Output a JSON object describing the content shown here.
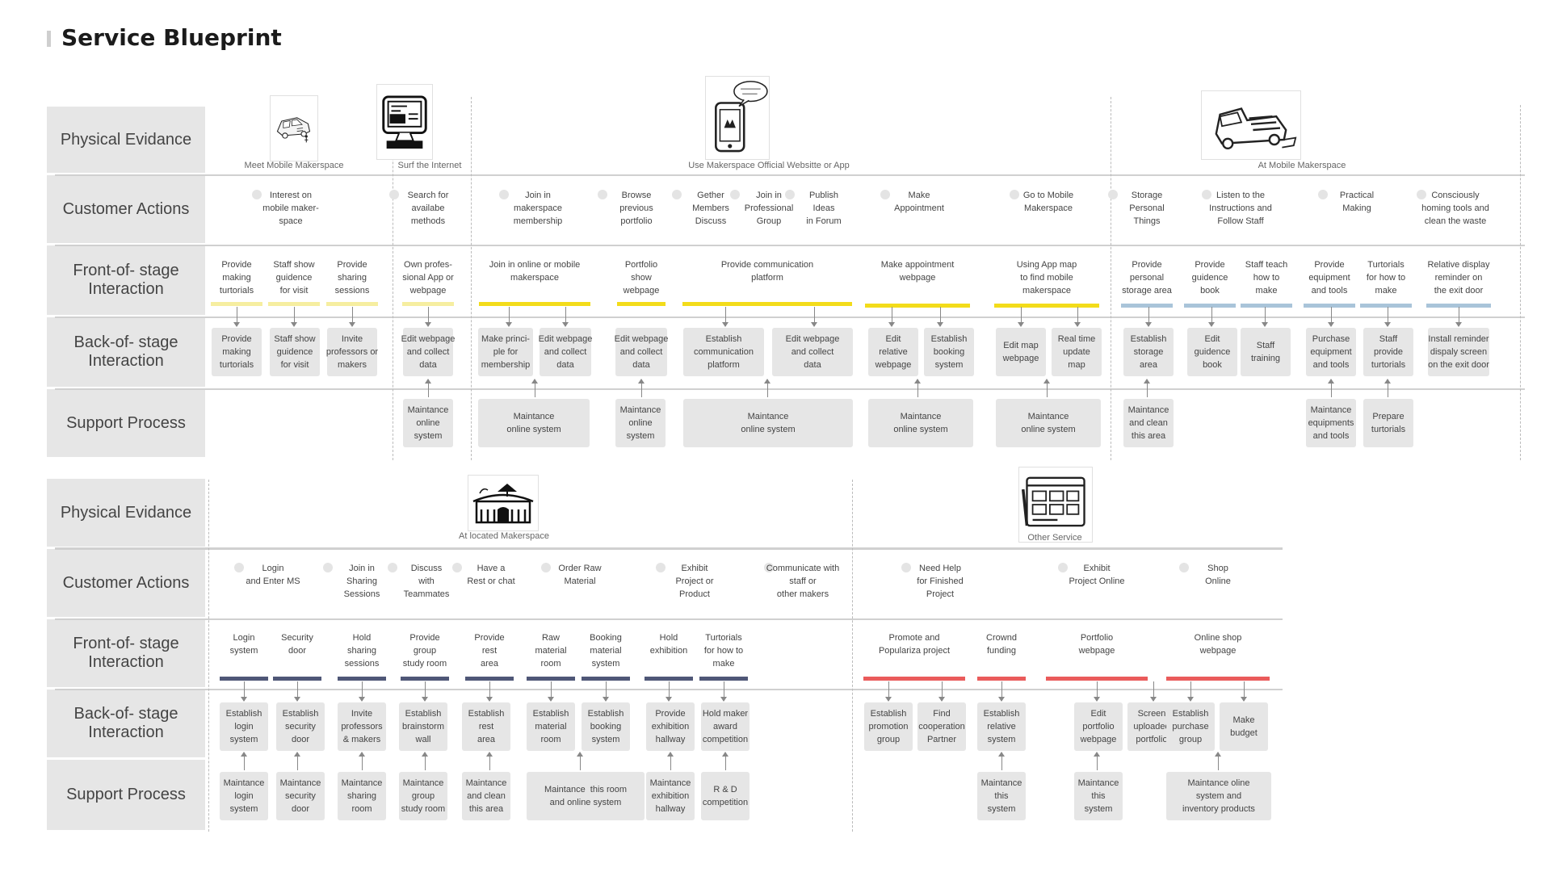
{
  "title": "Service Blueprint",
  "colors": {
    "yellow_light": "#f6eea0",
    "yellow": "#f3dc1a",
    "blue_light": "#a9c4d9",
    "navy": "#4f5777",
    "red": "#ea5b5b",
    "lane": "#e6e6e6"
  },
  "lane_labels": [
    "Physical\nEvidance",
    "Customer\nActions",
    "Front-of-\nstage\nInteraction",
    "Back-of-\nstage\nInteraction",
    "Support\nProcess"
  ],
  "lane_labels_bottom": [
    "Physical\nEvidance",
    "Customer\nActions",
    "Front-of-\nstage\nInteraction",
    "Back-of-\nstage\nInteraction",
    "Support\nProcess"
  ],
  "evidence_top": [
    {
      "icon": "mobile-van-sketch-icon",
      "caption": "Meet Mobile Makerspace"
    },
    {
      "icon": "computer-sketch-icon",
      "caption": "Surf the Internet"
    },
    {
      "icon": "phone-app-sketch-icon",
      "caption": "Use Makerspace Official Websitte or App",
      "bubble": "What can I do for you?"
    },
    {
      "icon": "mobile-truck-sketch-icon",
      "caption": "At Mobile Makerspace"
    }
  ],
  "evidence_bottom": [
    {
      "icon": "makerspace-building-sketch-icon",
      "caption": "At located Makerspace"
    },
    {
      "icon": "website-sketch-icon",
      "caption": "Other Service"
    }
  ],
  "customer_actions_top": [
    "Interest on\nmobile maker-\nspace",
    "Search for\navailabe\nmethods",
    "Join in\nmakerspace\nmembership",
    "Browse\nprevious\nportfolio",
    "Gether\nMembers\nDiscuss",
    "Join in\nProfessional\nGroup",
    "Publish\nIdeas\nin Forum",
    "Make\nAppointment",
    "Go to Mobile\nMakerspace",
    "Storage\nPersonal\nThings",
    "Listen to the\nInstructions and\nFollow Staff",
    "Practical\nMaking",
    "Consciously\nhoming tools and\nclean the waste"
  ],
  "front_top": [
    "Provide\nmaking\nturtorials",
    "Staff show\nguidence\nfor visit",
    "Provide\nsharing\nsessions",
    "Own profes-\nsional App or\nwebpage",
    "Join in online or mobile\nmakerspace",
    "Portfolio\nshow\nwebpage",
    "Provide communication\nplatform",
    "Make appointment\nwebpage",
    "Using App map\nto find mobile\nmakerspace",
    "Provide\npersonal\nstorage area",
    "Provide\nguidence\nbook",
    "Staff teach\nhow to\nmake",
    "Provide\nequipment\nand tools",
    "Turtorials\nfor how to\nmake",
    "Relative display\nreminder on\nthe exit door"
  ],
  "back_top": [
    "Provide\nmaking\nturtorials",
    "Staff show\nguidence\nfor visit",
    "Invite\nprofessors or\nmakers",
    "Edit webpage\nand collect\ndata",
    "Make princi-\nple for\nmembership",
    "Edit webpage\nand collect\ndata",
    "Edit webpage\nand collect\ndata",
    "Establish\ncommunication\nplatform",
    "Edit webpage\nand collect\ndata",
    "Edit\nrelative\nwebpage",
    "Establish\nbooking\nsystem",
    "Edit map\nwebpage",
    "Real time\nupdate\nmap",
    "Establish\nstorage\narea",
    "Edit\nguidence\nbook",
    "Staff\ntraining",
    "Purchase\nequipment\nand tools",
    "Staff\nprovide\nturtorials",
    "Install reminder\ndispaly screen\non the exit door"
  ],
  "support_top": [
    "Maintance\nonline\nsystem",
    "Maintance\nonline system",
    "Maintance\nonline\nsystem",
    "Maintance\nonline system",
    "Maintance\nonline system",
    "Maintance\nonline system",
    "Maintance\nand clean\nthis area",
    "Maintance\nequipments\nand tools",
    "Prepare\nturtorials"
  ],
  "customer_actions_bottom": [
    "Login\nand Enter MS",
    "Join in\nSharing\nSessions",
    "Discuss\nwith\nTeammates",
    "Have a\nRest or chat",
    "Order Raw\nMaterial",
    "Exhibit\nProject or\nProduct",
    "Communicate with\nstaff or\nother makers",
    "Need Help\nfor Finished\nProject",
    "Exhibit\nProject Online",
    "Shop\nOnline"
  ],
  "front_bottom": [
    "Login\nsystem",
    "Security\ndoor",
    "Hold\nsharing\nsessions",
    "Provide\ngroup\nstudy room",
    "Provide\nrest\narea",
    "Raw\nmaterial\nroom",
    "Booking\nmaterial\nsystem",
    "Hold\nexhibition",
    "Turtorials\nfor how to\nmake",
    "Promote and\nPopulariza project",
    "Crownd\nfunding",
    "Portfolio\nwebpage",
    "Online shop\nwebpage"
  ],
  "back_bottom": [
    "Establish\nlogin\nsystem",
    "Establish\nsecurity\ndoor",
    "Invite\nprofessors\n& makers",
    "Establish\nbrainstorm\nwall",
    "Establish\nrest\narea",
    "Establish\nmaterial\nroom",
    "Establish\nbooking\nsystem",
    "Provide\nexhibition\nhallway",
    "Hold maker\naward\ncompetition",
    "Establish\npromotion\ngroup",
    "Find\ncooperation\nPartner",
    "Establish\nrelative\nsystem",
    "Edit\nportfolio\nwebpage",
    "Screen\nuploaded\nportfolio",
    "Establish\npurchase\ngroup",
    "Make\nbudget"
  ],
  "support_bottom": [
    "Maintance\nlogin\nsystem",
    "Maintance\nsecurity\ndoor",
    "Maintance\nsharing\nroom",
    "Maintance\ngroup\nstudy room",
    "Maintance\nand clean\nthis area",
    "Maintance  this room\nand online system",
    "Maintance\nexhibition\nhallway",
    "R & D\ncompetition",
    "Maintance\nthis\nsystem",
    "Maintance\nthis\nsystem",
    "Maintance oline\nsystem and\ninventory products"
  ]
}
